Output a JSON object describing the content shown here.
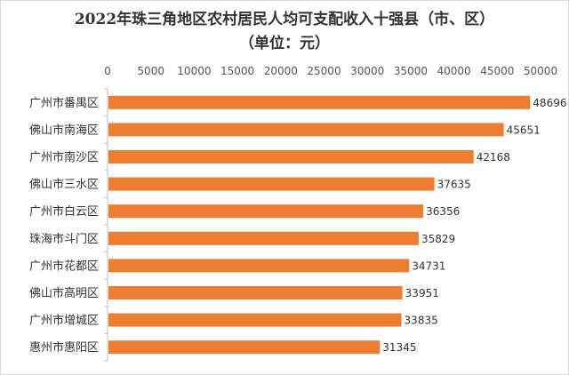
{
  "chart_data": {
    "type": "bar",
    "orientation": "horizontal",
    "title": "2022年珠三角地区农村居民人均可支配收入十强县（市、区）",
    "subtitle": "（单位：元）",
    "categories": [
      "广州市番禺区",
      "佛山市南海区",
      "广州市南沙区",
      "佛山市三水区",
      "广州市白云区",
      "珠海市斗门区",
      "广州市花都区",
      "佛山市高明区",
      "广州市增城区",
      "惠州市惠阳区"
    ],
    "values": [
      48696,
      45651,
      42168,
      37635,
      36356,
      35829,
      34731,
      33951,
      33835,
      31345
    ],
    "data_labels": [
      "48696",
      "45651",
      "42168",
      "37635",
      "36356",
      "35829",
      "34731",
      "33951",
      "33835",
      "31345"
    ],
    "xlim": [
      0,
      50000
    ],
    "x_ticks": [
      "0",
      "5000",
      "10000",
      "15000",
      "20000",
      "25000",
      "30000",
      "35000",
      "40000",
      "45000",
      "50000"
    ],
    "x_axis_position": "top",
    "grid": false,
    "legend": "none",
    "bar_color": "#ED7D31",
    "axis_color": "#bfbfbf"
  }
}
